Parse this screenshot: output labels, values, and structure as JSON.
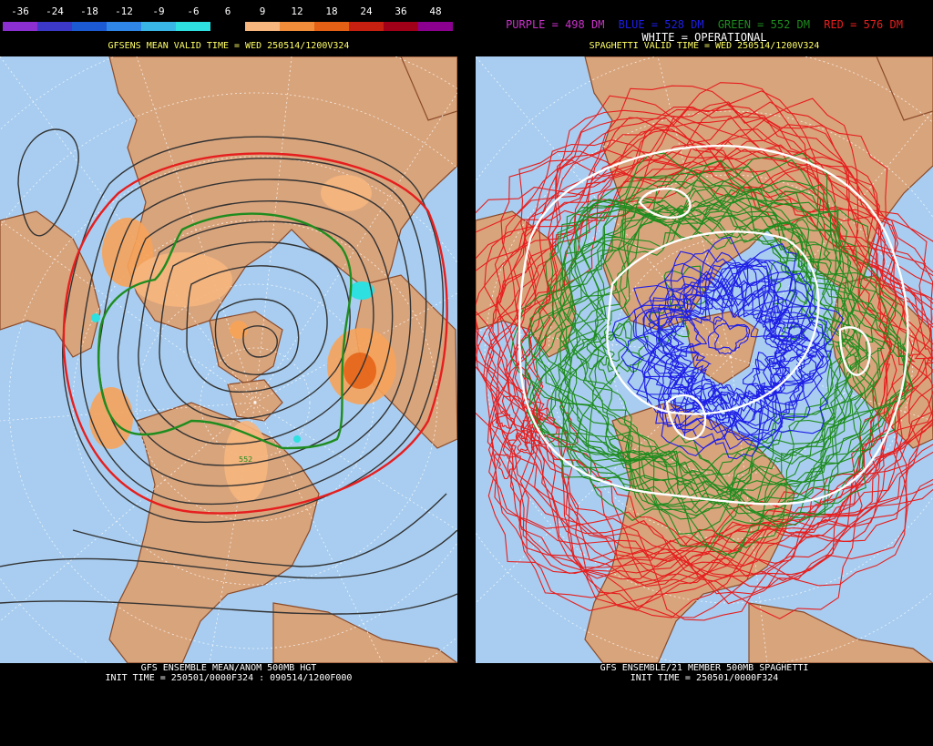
{
  "left_panel": {
    "legend": {
      "labels": [
        "-36",
        "-24",
        "-18",
        "-12",
        "-9",
        "-6",
        "6",
        "9",
        "12",
        "18",
        "24",
        "36",
        "48"
      ],
      "colors": [
        "#8c2fd0",
        "#3c38c8",
        "#1c5ad4",
        "#2f86e6",
        "#39b6e6",
        "#2ee0e0",
        "#000000",
        "#f6b67e",
        "#f08c3a",
        "#e46014",
        "#c82010",
        "#a00018",
        "#8c0090"
      ]
    },
    "valid_time": "GFSENS MEAN VALID TIME = WED 250514/1200V324",
    "caption_line1": "GFS ENSEMBLE MEAN/ANOM 500MB HGT",
    "caption_line2": "INIT TIME = 250501/0000F324 : 090514/1200F000",
    "contour_label": "552"
  },
  "right_panel": {
    "legend_items": [
      {
        "text": "PURPLE = 498 DM",
        "color": "#c832c8"
      },
      {
        "text": "BLUE = 528 DM",
        "color": "#1e1ee6"
      },
      {
        "text": "GREEN = 552 DM",
        "color": "#1e8c1e"
      },
      {
        "text": "RED = 576 DM",
        "color": "#e61e1e"
      }
    ],
    "white_line": "WHITE = OPERATIONAL",
    "valid_time": "SPAGHETTI VALID TIME = WED 250514/1200V324",
    "caption_line1": "GFS ENSEMBLE/21 MEMBER 500MB SPAGHETTI",
    "caption_line2": "INIT TIME = 250501/0000F324"
  },
  "colors": {
    "ocean": "#a8cdf0",
    "land": "#d8a47c",
    "border": "#8b4b2a",
    "grid": "#ffffff"
  }
}
